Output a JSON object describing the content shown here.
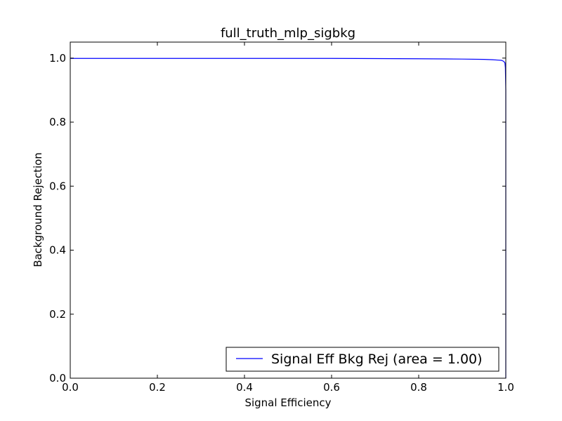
{
  "chart_data": {
    "type": "line",
    "title": "full_truth_mlp_sigbkg",
    "xlabel": "Signal Efficiency",
    "ylabel": "Background Rejection",
    "xlim": [
      0.0,
      1.0
    ],
    "ylim": [
      0.0,
      1.05
    ],
    "xticks": [
      "0.0",
      "0.2",
      "0.4",
      "0.6",
      "0.8",
      "1.0"
    ],
    "yticks": [
      "0.0",
      "0.2",
      "0.4",
      "0.6",
      "0.8",
      "1.0"
    ],
    "grid": false,
    "legend_position": "lower-right",
    "series": [
      {
        "name": "Signal Eff Bkg Rej (area = 1.00)",
        "color": "#0000ff",
        "x": [
          0.0,
          0.2,
          0.4,
          0.6,
          0.8,
          0.9,
          0.95,
          0.97,
          0.98,
          0.99,
          0.995,
          0.998,
          0.999,
          1.0,
          1.0
        ],
        "y": [
          0.999,
          0.999,
          0.999,
          0.999,
          0.998,
          0.997,
          0.996,
          0.995,
          0.994,
          0.993,
          0.99,
          0.985,
          0.97,
          0.9,
          0.0
        ]
      }
    ]
  }
}
